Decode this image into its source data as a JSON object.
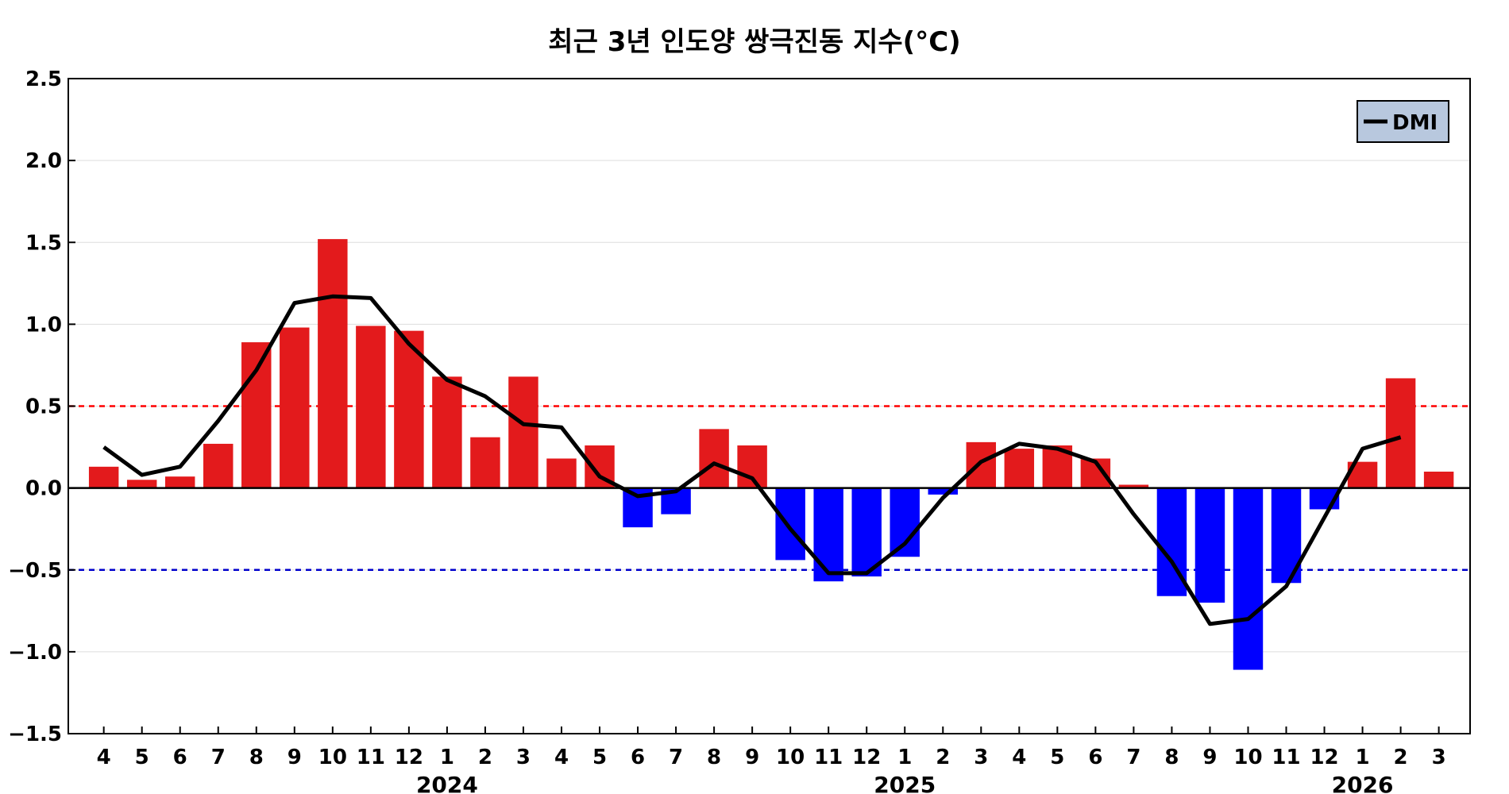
{
  "chart_data": {
    "type": "bar",
    "title": "최근 3년 인도양 쌍극진동 지수(°C)",
    "xlabel": "",
    "ylabel": "",
    "ylim": [
      -1.5,
      2.5
    ],
    "yticks": [
      "2.5",
      "2.0",
      "1.5",
      "1.0",
      "0.5",
      "0.0",
      "−0.5",
      "−1.0",
      "−1.5"
    ],
    "ytick_values": [
      2.5,
      2.0,
      1.5,
      1.0,
      0.5,
      0.0,
      -0.5,
      -1.0,
      -1.5
    ],
    "categories": [
      "4",
      "5",
      "6",
      "7",
      "8",
      "9",
      "10",
      "11",
      "12",
      "1",
      "2",
      "3",
      "4",
      "5",
      "6",
      "7",
      "8",
      "9",
      "10",
      "11",
      "12",
      "1",
      "2",
      "3",
      "4",
      "5",
      "6",
      "7",
      "8",
      "9",
      "10",
      "11",
      "12",
      "1",
      "2",
      "3"
    ],
    "years": [
      {
        "label": "2024",
        "center_index": 9
      },
      {
        "label": "2025",
        "center_index": 21
      },
      {
        "label": "2026",
        "center_index": 33
      }
    ],
    "bars": [
      0.13,
      0.05,
      0.07,
      0.27,
      0.89,
      0.98,
      1.52,
      0.99,
      0.96,
      0.68,
      0.31,
      0.68,
      0.18,
      0.26,
      -0.24,
      -0.16,
      0.36,
      0.26,
      -0.44,
      -0.57,
      -0.54,
      -0.42,
      -0.04,
      0.28,
      0.24,
      0.26,
      0.18,
      0.02,
      -0.66,
      -0.7,
      -1.11,
      -0.58,
      -0.13,
      0.16,
      0.67,
      0.1
    ],
    "series": [
      {
        "name": "DMI",
        "values": [
          0.25,
          0.08,
          0.13,
          0.41,
          0.72,
          1.13,
          1.17,
          1.16,
          0.88,
          0.66,
          0.56,
          0.39,
          0.37,
          0.07,
          -0.05,
          -0.02,
          0.15,
          0.06,
          -0.25,
          -0.52,
          -0.52,
          -0.34,
          -0.06,
          0.16,
          0.27,
          0.24,
          0.16,
          -0.16,
          -0.45,
          -0.83,
          -0.8,
          -0.6,
          -0.18,
          0.24,
          0.31,
          null
        ]
      }
    ],
    "thresholds": [
      0.5,
      -0.5
    ],
    "colors": {
      "positive": "#e31a1c",
      "negative": "#0000ff",
      "line": "#000000",
      "upper_threshold": "#ff0000",
      "lower_threshold": "#0000cc",
      "legend_bg": "#b8c8de",
      "grid": "#dddddd"
    },
    "grid": true,
    "legend": {
      "position": "top-right",
      "label": "DMI"
    }
  }
}
